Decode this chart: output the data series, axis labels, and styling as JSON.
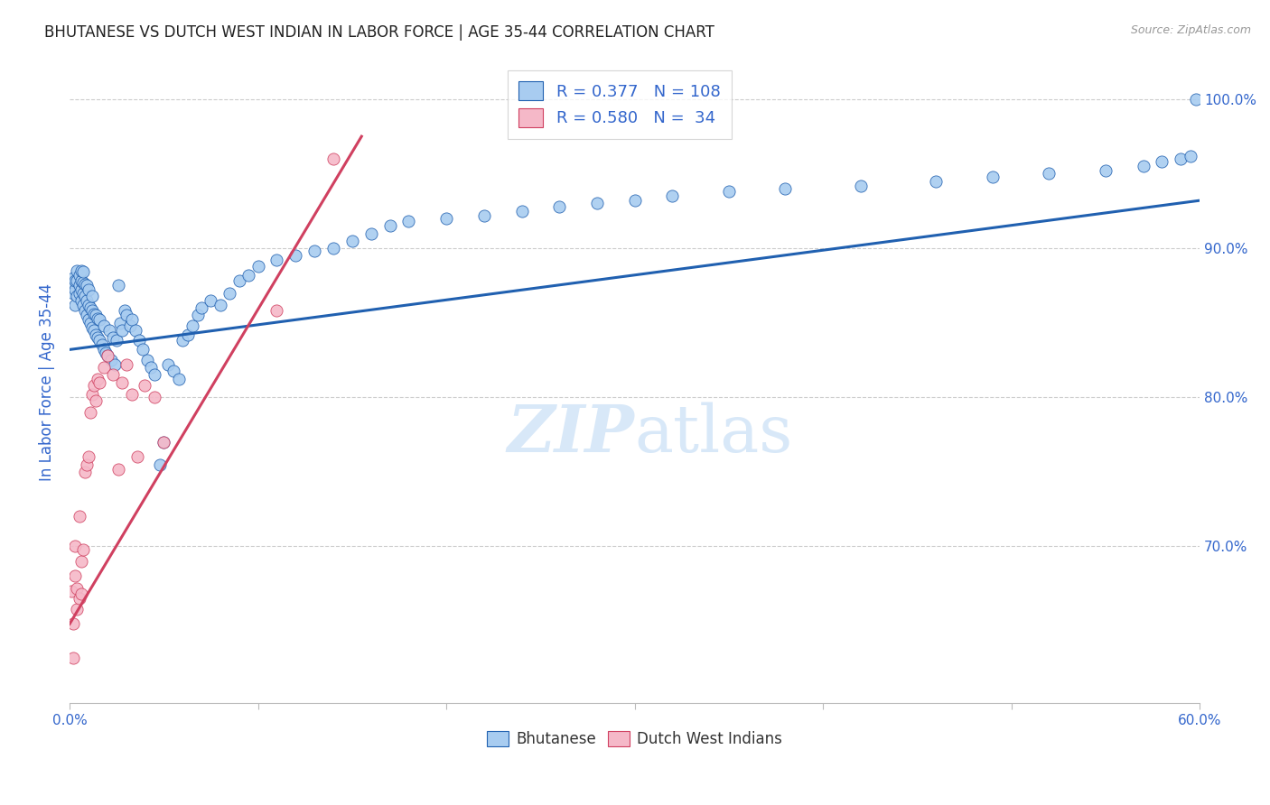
{
  "title": "BHUTANESE VS DUTCH WEST INDIAN IN LABOR FORCE | AGE 35-44 CORRELATION CHART",
  "source_text": "Source: ZipAtlas.com",
  "ylabel": "In Labor Force | Age 35-44",
  "xlim": [
    0.0,
    0.6
  ],
  "ylim": [
    0.595,
    1.025
  ],
  "xticks": [
    0.0,
    0.1,
    0.2,
    0.3,
    0.4,
    0.5,
    0.6
  ],
  "xticklabels": [
    "0.0%",
    "",
    "",
    "",
    "",
    "",
    "60.0%"
  ],
  "ytick_positions": [
    0.7,
    0.8,
    0.9,
    1.0
  ],
  "ytick_labels": [
    "70.0%",
    "80.0%",
    "90.0%",
    "100.0%"
  ],
  "blue_R": 0.377,
  "blue_N": 108,
  "pink_R": 0.58,
  "pink_N": 34,
  "legend_label_blue": "Bhutanese",
  "legend_label_pink": "Dutch West Indians",
  "blue_color": "#A8CCF0",
  "pink_color": "#F5B8C8",
  "blue_line_color": "#2060B0",
  "pink_line_color": "#D04060",
  "text_color": "#3366CC",
  "watermark_color": "#D8E8F8",
  "blue_scatter_x": [
    0.001,
    0.002,
    0.002,
    0.003,
    0.003,
    0.003,
    0.004,
    0.004,
    0.004,
    0.005,
    0.005,
    0.005,
    0.006,
    0.006,
    0.006,
    0.006,
    0.007,
    0.007,
    0.007,
    0.007,
    0.008,
    0.008,
    0.008,
    0.009,
    0.009,
    0.009,
    0.01,
    0.01,
    0.01,
    0.011,
    0.011,
    0.012,
    0.012,
    0.012,
    0.013,
    0.013,
    0.014,
    0.014,
    0.015,
    0.015,
    0.016,
    0.016,
    0.017,
    0.018,
    0.018,
    0.019,
    0.02,
    0.021,
    0.022,
    0.023,
    0.024,
    0.025,
    0.026,
    0.027,
    0.028,
    0.029,
    0.03,
    0.032,
    0.033,
    0.035,
    0.037,
    0.039,
    0.041,
    0.043,
    0.045,
    0.048,
    0.05,
    0.052,
    0.055,
    0.058,
    0.06,
    0.063,
    0.065,
    0.068,
    0.07,
    0.075,
    0.08,
    0.085,
    0.09,
    0.095,
    0.1,
    0.11,
    0.12,
    0.13,
    0.14,
    0.15,
    0.16,
    0.17,
    0.18,
    0.2,
    0.22,
    0.24,
    0.26,
    0.28,
    0.3,
    0.32,
    0.35,
    0.38,
    0.42,
    0.46,
    0.49,
    0.52,
    0.55,
    0.57,
    0.58,
    0.59,
    0.595,
    0.598
  ],
  "blue_scatter_y": [
    0.875,
    0.87,
    0.88,
    0.862,
    0.872,
    0.878,
    0.868,
    0.878,
    0.885,
    0.87,
    0.875,
    0.882,
    0.865,
    0.872,
    0.878,
    0.885,
    0.862,
    0.87,
    0.877,
    0.884,
    0.858,
    0.868,
    0.876,
    0.855,
    0.865,
    0.875,
    0.852,
    0.862,
    0.872,
    0.85,
    0.86,
    0.847,
    0.858,
    0.868,
    0.845,
    0.856,
    0.842,
    0.855,
    0.84,
    0.853,
    0.838,
    0.852,
    0.835,
    0.832,
    0.848,
    0.83,
    0.828,
    0.845,
    0.825,
    0.84,
    0.822,
    0.838,
    0.875,
    0.85,
    0.845,
    0.858,
    0.855,
    0.848,
    0.852,
    0.845,
    0.838,
    0.832,
    0.825,
    0.82,
    0.815,
    0.755,
    0.77,
    0.822,
    0.818,
    0.812,
    0.838,
    0.842,
    0.848,
    0.855,
    0.86,
    0.865,
    0.862,
    0.87,
    0.878,
    0.882,
    0.888,
    0.892,
    0.895,
    0.898,
    0.9,
    0.905,
    0.91,
    0.915,
    0.918,
    0.92,
    0.922,
    0.925,
    0.928,
    0.93,
    0.932,
    0.935,
    0.938,
    0.94,
    0.942,
    0.945,
    0.948,
    0.95,
    0.952,
    0.955,
    0.958,
    0.96,
    0.962,
    1.0
  ],
  "pink_scatter_x": [
    0.001,
    0.002,
    0.002,
    0.003,
    0.003,
    0.004,
    0.004,
    0.005,
    0.005,
    0.006,
    0.006,
    0.007,
    0.008,
    0.009,
    0.01,
    0.011,
    0.012,
    0.013,
    0.014,
    0.015,
    0.016,
    0.018,
    0.02,
    0.023,
    0.026,
    0.028,
    0.03,
    0.033,
    0.036,
    0.04,
    0.045,
    0.05,
    0.11,
    0.14
  ],
  "pink_scatter_y": [
    0.67,
    0.625,
    0.648,
    0.68,
    0.7,
    0.658,
    0.672,
    0.665,
    0.72,
    0.668,
    0.69,
    0.698,
    0.75,
    0.755,
    0.76,
    0.79,
    0.802,
    0.808,
    0.798,
    0.812,
    0.81,
    0.82,
    0.828,
    0.815,
    0.752,
    0.81,
    0.822,
    0.802,
    0.76,
    0.808,
    0.8,
    0.77,
    0.858,
    0.96
  ],
  "blue_trend_x": [
    0.0,
    0.6
  ],
  "blue_trend_y": [
    0.832,
    0.932
  ],
  "pink_trend_x": [
    0.0,
    0.155
  ],
  "pink_trend_y": [
    0.648,
    0.975
  ]
}
